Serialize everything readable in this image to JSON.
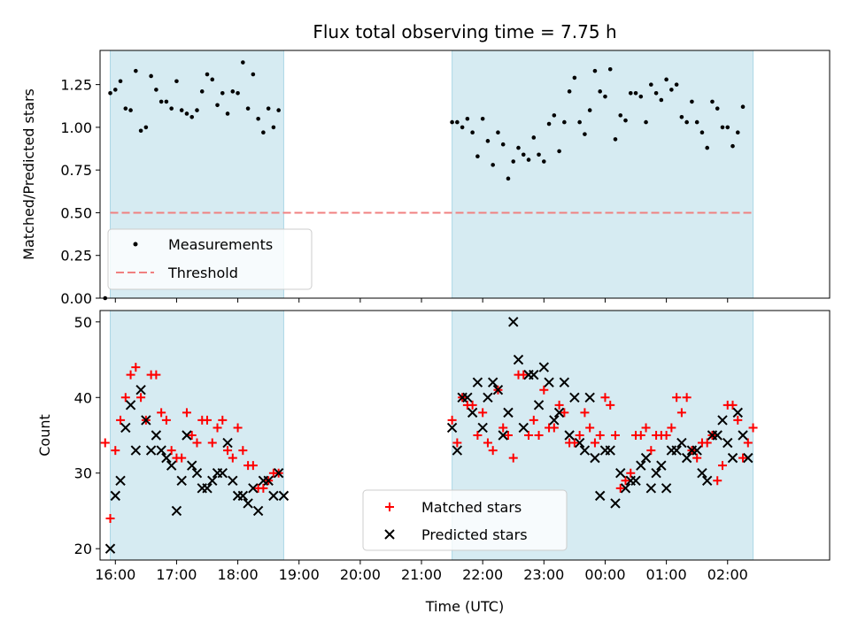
{
  "figure": {
    "title": "Flux total observing time = 7.75 h",
    "xlabel": "Time (UTC)"
  },
  "chart_data": [
    {
      "type": "scatter",
      "panel": "top",
      "xlabel": "",
      "ylabel": "Matched/Predicted stars",
      "ylim": [
        0,
        1.45
      ],
      "yticks": [
        0.0,
        0.25,
        0.5,
        0.75,
        1.0,
        1.25
      ],
      "ytick_labels": [
        "0.00",
        "0.25",
        "0.50",
        "0.75",
        "1.00",
        "1.25"
      ],
      "xticks_labelled": false,
      "grid": false,
      "legend_placement": "lower-left",
      "shaded_intervals": [
        {
          "start": "15:55",
          "end": "18:45"
        },
        {
          "start": "21:30",
          "end": "02:25"
        }
      ],
      "threshold": {
        "name": "Threshold",
        "value": 0.5,
        "start": "15:55",
        "end": "02:25",
        "color": "#f08080"
      },
      "series": [
        {
          "name": "Measurements",
          "marker": "dot",
          "color": "#000000",
          "x": [
            "15:50",
            "15:55",
            "16:00",
            "16:05",
            "16:10",
            "16:15",
            "16:20",
            "16:25",
            "16:30",
            "16:35",
            "16:40",
            "16:45",
            "16:50",
            "16:55",
            "17:00",
            "17:05",
            "17:10",
            "17:15",
            "17:20",
            "17:25",
            "17:30",
            "17:35",
            "17:40",
            "17:45",
            "17:50",
            "17:55",
            "18:00",
            "18:05",
            "18:10",
            "18:15",
            "18:20",
            "18:25",
            "18:30",
            "18:35",
            "18:40",
            "18:45",
            "21:30",
            "21:35",
            "21:40",
            "21:45",
            "21:50",
            "21:55",
            "22:00",
            "22:05",
            "22:10",
            "22:15",
            "22:20",
            "22:25",
            "22:30",
            "22:35",
            "22:40",
            "22:45",
            "22:50",
            "22:55",
            "23:00",
            "23:05",
            "23:10",
            "23:15",
            "23:20",
            "23:25",
            "23:30",
            "23:35",
            "23:40",
            "23:45",
            "23:50",
            "23:55",
            "00:00",
            "00:05",
            "00:10",
            "00:15",
            "00:20",
            "00:25",
            "00:30",
            "00:35",
            "00:40",
            "00:45",
            "00:50",
            "00:55",
            "01:00",
            "01:05",
            "01:10",
            "01:15",
            "01:20",
            "01:25",
            "01:30",
            "01:35",
            "01:40",
            "01:45",
            "01:50",
            "01:55",
            "02:00",
            "02:05",
            "02:10",
            "02:15",
            "02:20",
            "02:25"
          ],
          "y": [
            0.0,
            1.2,
            1.22,
            1.27,
            1.11,
            1.1,
            1.33,
            0.98,
            1.0,
            1.3,
            1.22,
            1.15,
            1.15,
            1.11,
            1.27,
            1.1,
            1.08,
            1.06,
            1.1,
            1.21,
            1.31,
            1.28,
            1.13,
            1.2,
            1.08,
            1.21,
            1.2,
            1.38,
            1.11,
            1.31,
            1.05,
            0.97,
            1.11,
            1.0,
            1.1,
            null,
            1.03,
            1.03,
            1.0,
            1.05,
            0.97,
            0.83,
            1.05,
            0.92,
            0.78,
            0.97,
            0.9,
            0.7,
            0.8,
            0.88,
            0.84,
            0.81,
            0.94,
            0.84,
            0.8,
            1.02,
            1.07,
            0.86,
            1.03,
            1.21,
            1.29,
            1.03,
            0.96,
            1.1,
            1.33,
            1.21,
            1.18,
            1.34,
            0.93,
            1.07,
            1.04,
            1.2,
            1.2,
            1.18,
            1.03,
            1.25,
            1.2,
            1.16,
            1.28,
            1.22,
            1.25,
            1.06,
            1.03,
            1.15,
            1.03,
            0.97,
            0.88,
            1.15,
            1.11,
            1.0,
            1.0,
            0.89,
            0.97,
            1.12,
            null,
            null
          ]
        }
      ]
    },
    {
      "type": "scatter",
      "panel": "bottom",
      "xlabel": "Time (UTC)",
      "ylabel": "Count",
      "ylim": [
        18.5,
        51.5
      ],
      "yticks": [
        20,
        30,
        40,
        50
      ],
      "ytick_labels": [
        "20",
        "30",
        "40",
        "50"
      ],
      "xticks": [
        "16:00",
        "17:00",
        "18:00",
        "19:00",
        "20:00",
        "21:00",
        "22:00",
        "23:00",
        "00:00",
        "01:00",
        "02:00"
      ],
      "grid": false,
      "legend_placement": "lower-center",
      "shaded_intervals": [
        {
          "start": "15:55",
          "end": "18:45"
        },
        {
          "start": "21:30",
          "end": "02:25"
        }
      ],
      "series": [
        {
          "name": "Matched stars",
          "marker": "plus",
          "color": "#ff0000",
          "x": [
            "15:50",
            "15:55",
            "16:00",
            "16:05",
            "16:10",
            "16:15",
            "16:20",
            "16:25",
            "16:30",
            "16:35",
            "16:40",
            "16:45",
            "16:50",
            "16:55",
            "17:00",
            "17:05",
            "17:10",
            "17:15",
            "17:20",
            "17:25",
            "17:30",
            "17:35",
            "17:40",
            "17:45",
            "17:50",
            "17:55",
            "18:00",
            "18:05",
            "18:10",
            "18:15",
            "18:20",
            "18:25",
            "18:30",
            "18:35",
            "18:40",
            "18:45",
            "21:30",
            "21:35",
            "21:40",
            "21:45",
            "21:50",
            "21:55",
            "22:00",
            "22:05",
            "22:10",
            "22:15",
            "22:20",
            "22:25",
            "22:30",
            "22:35",
            "22:40",
            "22:45",
            "22:50",
            "22:55",
            "23:00",
            "23:05",
            "23:10",
            "23:15",
            "23:20",
            "23:25",
            "23:30",
            "23:35",
            "23:40",
            "23:45",
            "23:50",
            "23:55",
            "00:00",
            "00:05",
            "00:10",
            "00:15",
            "00:20",
            "00:25",
            "00:30",
            "00:35",
            "00:40",
            "00:45",
            "00:50",
            "00:55",
            "01:00",
            "01:05",
            "01:10",
            "01:15",
            "01:20",
            "01:25",
            "01:30",
            "01:35",
            "01:40",
            "01:45",
            "01:50",
            "01:55",
            "02:00",
            "02:05",
            "02:10",
            "02:15",
            "02:20",
            "02:25"
          ],
          "y": [
            34,
            24,
            33,
            37,
            40,
            43,
            44,
            40,
            37,
            43,
            43,
            38,
            37,
            33,
            32,
            32,
            38,
            35,
            34,
            37,
            37,
            34,
            36,
            37,
            33,
            32,
            36,
            33,
            31,
            31,
            28,
            28,
            29,
            30,
            30,
            null,
            37,
            34,
            40,
            39,
            39,
            35,
            38,
            34,
            33,
            41,
            36,
            35,
            32,
            43,
            43,
            35,
            37,
            35,
            41,
            36,
            36,
            39,
            38,
            34,
            34,
            35,
            38,
            36,
            34,
            35,
            40,
            39,
            35,
            28,
            29,
            30,
            35,
            35,
            36,
            33,
            35,
            35,
            35,
            36,
            40,
            38,
            40,
            33,
            32,
            34,
            34,
            35,
            29,
            31,
            39,
            39,
            37,
            32,
            34,
            36
          ]
        },
        {
          "name": "Predicted stars",
          "marker": "x",
          "color": "#000000",
          "x": [
            "15:55",
            "16:00",
            "16:05",
            "16:10",
            "16:15",
            "16:20",
            "16:25",
            "16:30",
            "16:35",
            "16:40",
            "16:45",
            "16:50",
            "16:55",
            "17:00",
            "17:05",
            "17:10",
            "17:15",
            "17:20",
            "17:25",
            "17:30",
            "17:35",
            "17:40",
            "17:45",
            "17:50",
            "17:55",
            "18:00",
            "18:05",
            "18:10",
            "18:15",
            "18:20",
            "18:25",
            "18:30",
            "18:35",
            "18:40",
            "18:45",
            "21:30",
            "21:35",
            "21:40",
            "21:45",
            "21:50",
            "21:55",
            "22:00",
            "22:05",
            "22:10",
            "22:15",
            "22:20",
            "22:25",
            "22:30",
            "22:35",
            "22:40",
            "22:45",
            "22:50",
            "22:55",
            "23:00",
            "23:05",
            "23:10",
            "23:15",
            "23:20",
            "23:25",
            "23:30",
            "23:35",
            "23:40",
            "23:45",
            "23:50",
            "23:55",
            "00:00",
            "00:05",
            "00:10",
            "00:15",
            "00:20",
            "00:25",
            "00:30",
            "00:35",
            "00:40",
            "00:45",
            "00:50",
            "00:55",
            "01:00",
            "01:05",
            "01:10",
            "01:15",
            "01:20",
            "01:25",
            "01:30",
            "01:35",
            "01:40",
            "01:45",
            "01:50",
            "01:55",
            "02:00",
            "02:05",
            "02:10",
            "02:15",
            "02:20",
            "02:25"
          ],
          "y": [
            20,
            27,
            29,
            36,
            39,
            33,
            41,
            37,
            33,
            35,
            33,
            32,
            31,
            25,
            29,
            35,
            31,
            30,
            28,
            28,
            29,
            30,
            30,
            34,
            29,
            27,
            27,
            26,
            28,
            25,
            29,
            29,
            27,
            30,
            27,
            36,
            33,
            40,
            40,
            38,
            42,
            36,
            40,
            42,
            41,
            35,
            38,
            50,
            45,
            36,
            43,
            43,
            39,
            44,
            42,
            37,
            38,
            42,
            35,
            40,
            34,
            33,
            40,
            32,
            27,
            33,
            33,
            26,
            30,
            28,
            29,
            29,
            31,
            32,
            28,
            30,
            31,
            28,
            33,
            33,
            34,
            32,
            33,
            33,
            30,
            29,
            35,
            35,
            37,
            34,
            32,
            38,
            35,
            32,
            null
          ]
        }
      ]
    }
  ]
}
